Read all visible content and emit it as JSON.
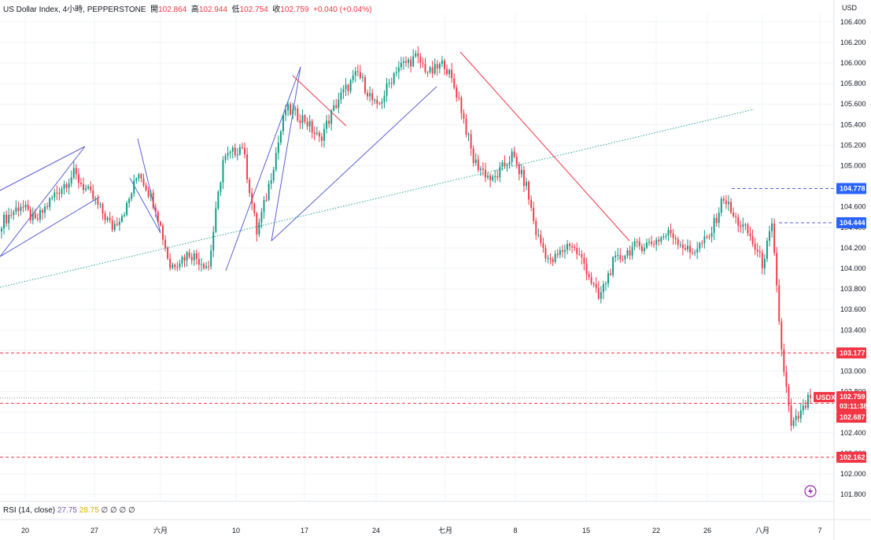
{
  "header": {
    "symbol": "US Dollar Index, 4小時, PEPPERSTONE",
    "open_label": "開",
    "open": "102.864",
    "high_label": "高",
    "high": "102.944",
    "low_label": "低",
    "low": "102.754",
    "close_label": "收",
    "close": "102.759",
    "change": "+0.040 (+0.04%)"
  },
  "currency": "USD",
  "rsi": {
    "label": "RSI (14, close)",
    "v1": "27.75",
    "v2": "28.75",
    "rest": "∅ ∅ ∅ ∅"
  },
  "tags": {
    "symbol_tag": "USDX",
    "price": "102.759",
    "countdown": "03:11:38",
    "l1": "104.778",
    "l2": "104.444",
    "l3": "103.177",
    "l4": "102.687",
    "l5": "102.162"
  },
  "colors": {
    "up": "#089981",
    "down": "#f23645",
    "trend": "#5b5fd6",
    "resistance": "#f23645",
    "guide": "#26a69a"
  },
  "chart_data": {
    "type": "candlestick",
    "y_axis_ticks": [
      "106.400",
      "106.200",
      "106.000",
      "105.800",
      "105.600",
      "105.400",
      "105.200",
      "105.000",
      "104.800",
      "104.600",
      "104.400",
      "104.200",
      "104.000",
      "103.800",
      "103.600",
      "103.400",
      "103.200",
      "103.000",
      "102.800",
      "102.600",
      "102.400",
      "102.200",
      "102.000",
      "101.800"
    ],
    "x_axis_ticks": [
      "20",
      "27",
      "六月",
      "10",
      "17",
      "24",
      "七月",
      "8",
      "15",
      "22",
      "26",
      "八月",
      "7"
    ],
    "ylim": [
      101.72,
      106.55
    ],
    "levels": [
      104.778,
      104.444,
      103.177,
      102.687,
      102.162
    ],
    "close_anchors": [
      [
        0,
        104.45
      ],
      [
        8,
        104.62
      ],
      [
        14,
        104.45
      ],
      [
        22,
        104.72
      ],
      [
        30,
        104.92
      ],
      [
        38,
        104.68
      ],
      [
        46,
        104.4
      ],
      [
        52,
        104.6
      ],
      [
        57,
        104.95
      ],
      [
        64,
        104.6
      ],
      [
        70,
        104.02
      ],
      [
        78,
        104.15
      ],
      [
        86,
        104.02
      ],
      [
        92,
        105.05
      ],
      [
        100,
        105.2
      ],
      [
        106,
        104.35
      ],
      [
        110,
        104.7
      ],
      [
        118,
        105.55
      ],
      [
        126,
        105.45
      ],
      [
        132,
        105.25
      ],
      [
        140,
        105.65
      ],
      [
        148,
        105.9
      ],
      [
        156,
        105.55
      ],
      [
        164,
        105.95
      ],
      [
        172,
        106.05
      ],
      [
        178,
        105.9
      ],
      [
        184,
        106.0
      ],
      [
        190,
        105.65
      ],
      [
        196,
        105.05
      ],
      [
        204,
        104.85
      ],
      [
        212,
        105.1
      ],
      [
        218,
        104.8
      ],
      [
        222,
        104.35
      ],
      [
        228,
        104.05
      ],
      [
        236,
        104.25
      ],
      [
        242,
        104.05
      ],
      [
        248,
        103.7
      ],
      [
        254,
        104.05
      ],
      [
        262,
        104.2
      ],
      [
        270,
        104.25
      ],
      [
        278,
        104.35
      ],
      [
        286,
        104.15
      ],
      [
        294,
        104.3
      ],
      [
        300,
        104.7
      ],
      [
        304,
        104.5
      ],
      [
        310,
        104.35
      ],
      [
        316,
        104.05
      ],
      [
        320,
        104.4
      ],
      [
        324,
        103.2
      ],
      [
        328,
        102.45
      ],
      [
        333,
        102.62
      ],
      [
        336,
        102.76
      ]
    ]
  }
}
